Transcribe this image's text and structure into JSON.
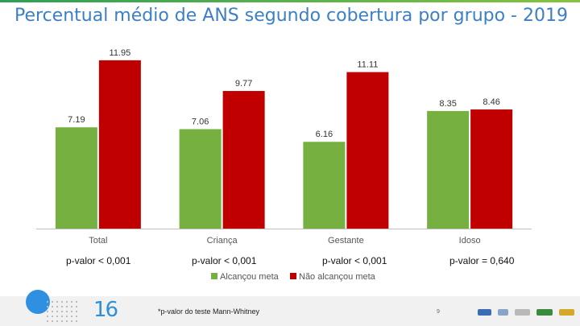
{
  "title": "Percentual médio de ANS segundo cobertura por grupo - 2019",
  "colors": {
    "green": "#76b041",
    "red": "#c00000",
    "title": "#3d7fc4"
  },
  "chart_data": {
    "type": "bar",
    "categories": [
      "Total",
      "Criança",
      "Gestante",
      "Idoso"
    ],
    "series": [
      {
        "name": "Alcançou meta",
        "values": [
          7.19,
          7.06,
          6.16,
          8.35
        ],
        "labels": [
          "7.19",
          "7.06",
          "6.16",
          "8.35"
        ],
        "color": "#76b041"
      },
      {
        "name": "Não alcançou meta",
        "values": [
          11.95,
          9.77,
          11.11,
          8.46
        ],
        "labels": [
          "11.95",
          "9.77",
          "11.11",
          "8.46"
        ],
        "color": "#c00000"
      }
    ],
    "ylim": [
      0,
      12
    ],
    "legend_position": "bottom",
    "grid": false
  },
  "pvalues": [
    "p-valor < 0,001",
    "p-valor < 0,001",
    "p-valor < 0,001",
    "p-valor = 0,640"
  ],
  "footnote": "*p-valor do teste Mann-Whitney",
  "logo_text": "16",
  "page_number": "9",
  "icons": [
    "circle-decoration-icon",
    "dot-grid-icon",
    "anniversary-logo-icon",
    "partner-logos-icon"
  ]
}
